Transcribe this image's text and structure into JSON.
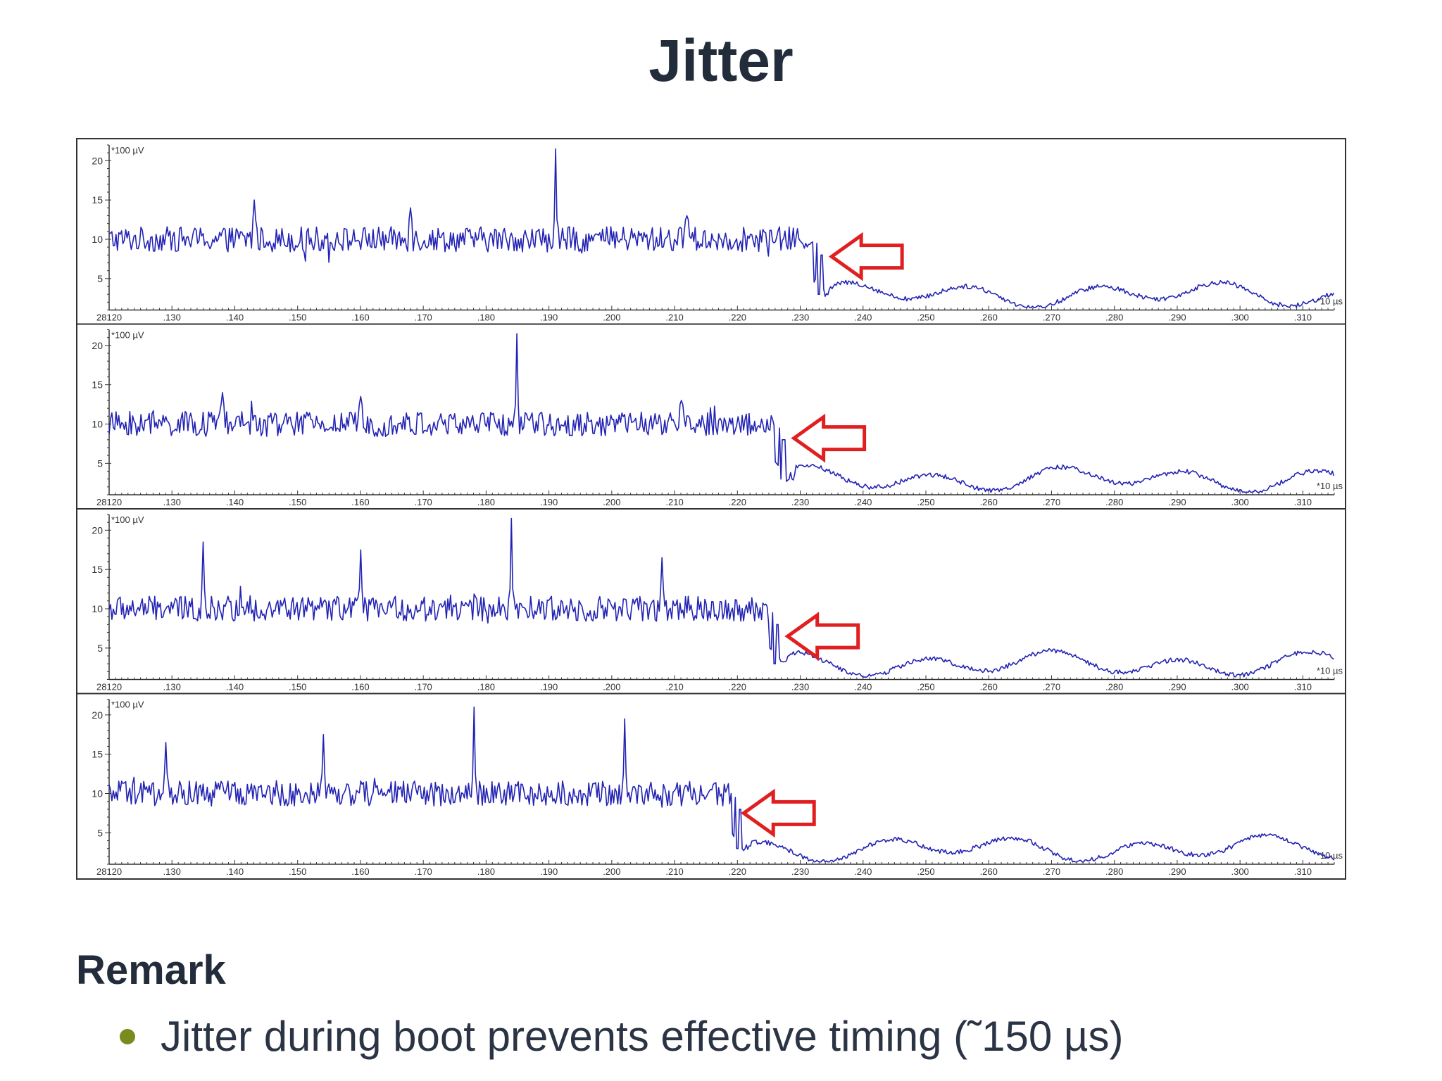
{
  "title": "Jitter",
  "remark": {
    "heading": "Remark",
    "items": [
      "Jitter during boot prevents effective timing (˜150 µs)"
    ]
  },
  "colors": {
    "trace": "#2323b4",
    "arrow": "#e02020",
    "bullet": "#7a8a1e"
  },
  "chart_data": [
    {
      "type": "line",
      "name_shown": "",
      "y_unit_label": "*100 µV",
      "x_unit_label": "*10 µs",
      "x_start_label": "28120",
      "xlim": [
        120,
        315
      ],
      "ylim": [
        1,
        22
      ],
      "xticks": [
        130,
        140,
        150,
        160,
        170,
        180,
        190,
        200,
        210,
        220,
        230,
        240,
        250,
        260,
        270,
        280,
        290,
        300,
        310
      ],
      "xtick_labels": [
        "130",
        "140",
        "150",
        "160",
        "170",
        "180",
        "190",
        "200",
        "210",
        "220",
        "230",
        "240",
        "250",
        "260",
        "270",
        "280",
        "290",
        "300",
        "310"
      ],
      "yticks": [
        5,
        10,
        15,
        20
      ],
      "ytick_labels": [
        "5",
        "10",
        "15",
        "20"
      ],
      "noise_level": 10,
      "drop_x": 232,
      "spikes": [
        {
          "x": 143,
          "y": 15
        },
        {
          "x": 168,
          "y": 14
        },
        {
          "x": 191,
          "y": 21.5
        },
        {
          "x": 212,
          "y": 13
        }
      ],
      "arrow_tip": {
        "x": 235,
        "y": 7.8
      }
    },
    {
      "type": "line",
      "y_unit_label": "*100 µV",
      "x_unit_label": "*10 µs",
      "x_start_label": "28120",
      "xlim": [
        120,
        315
      ],
      "ylim": [
        1,
        22
      ],
      "xticks": [
        130,
        140,
        150,
        160,
        170,
        180,
        190,
        200,
        210,
        220,
        230,
        240,
        250,
        260,
        270,
        280,
        290,
        300,
        310
      ],
      "xtick_labels": [
        "130",
        "140",
        "150",
        "160",
        "170",
        "180",
        "190",
        "200",
        "210",
        "220",
        "230",
        "240",
        "250",
        "260",
        "270",
        "280",
        "290",
        "300",
        "310"
      ],
      "yticks": [
        5,
        10,
        15,
        20
      ],
      "ytick_labels": [
        "5",
        "10",
        "15",
        "20"
      ],
      "noise_level": 10,
      "drop_x": 226,
      "spikes": [
        {
          "x": 138,
          "y": 14
        },
        {
          "x": 160,
          "y": 13.5
        },
        {
          "x": 185,
          "y": 21.5
        },
        {
          "x": 211,
          "y": 13
        }
      ],
      "arrow_tip": {
        "x": 229,
        "y": 8.2
      }
    },
    {
      "type": "line",
      "y_unit_label": "*100 µV",
      "x_unit_label": "*10 µs",
      "x_start_label": "28120",
      "xlim": [
        120,
        315
      ],
      "ylim": [
        1,
        22
      ],
      "xticks": [
        130,
        140,
        150,
        160,
        170,
        180,
        190,
        200,
        210,
        220,
        230,
        240,
        250,
        260,
        270,
        280,
        290,
        300,
        310
      ],
      "xtick_labels": [
        "130",
        "140",
        "150",
        "160",
        "170",
        "180",
        "190",
        "200",
        "210",
        "220",
        "230",
        "240",
        "250",
        "260",
        "270",
        "280",
        "290",
        "300",
        "310"
      ],
      "yticks": [
        5,
        10,
        15,
        20
      ],
      "ytick_labels": [
        "5",
        "10",
        "15",
        "20"
      ],
      "noise_level": 10,
      "drop_x": 225,
      "spikes": [
        {
          "x": 135,
          "y": 18.5
        },
        {
          "x": 160,
          "y": 17.5
        },
        {
          "x": 184,
          "y": 21.5
        },
        {
          "x": 208,
          "y": 16.5
        }
      ],
      "arrow_tip": {
        "x": 228,
        "y": 6.5
      }
    },
    {
      "type": "line",
      "y_unit_label": "*100 µV",
      "x_unit_label": "*10 µs",
      "x_start_label": "28120",
      "xlim": [
        120,
        315
      ],
      "ylim": [
        1,
        22
      ],
      "xticks": [
        130,
        140,
        150,
        160,
        170,
        180,
        190,
        200,
        210,
        220,
        230,
        240,
        250,
        260,
        270,
        280,
        290,
        300,
        310
      ],
      "xtick_labels": [
        "130",
        "140",
        "150",
        "160",
        "170",
        "180",
        "190",
        "200",
        "210",
        "220",
        "230",
        "240",
        "250",
        "260",
        "270",
        "280",
        "290",
        "300",
        "310"
      ],
      "yticks": [
        5,
        10,
        15,
        20
      ],
      "ytick_labels": [
        "5",
        "10",
        "15",
        "20"
      ],
      "noise_level": 10,
      "drop_x": 219,
      "spikes": [
        {
          "x": 129,
          "y": 16.5
        },
        {
          "x": 154,
          "y": 17.5
        },
        {
          "x": 178,
          "y": 21
        },
        {
          "x": 202,
          "y": 19.5
        }
      ],
      "arrow_tip": {
        "x": 221,
        "y": 7.5
      }
    }
  ]
}
